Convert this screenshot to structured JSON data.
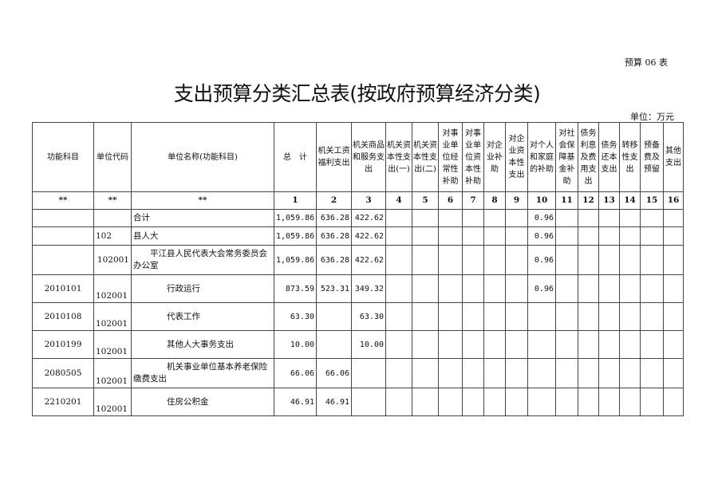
{
  "form_no": "预算 06 表",
  "title": "支出预算分类汇总表(按政府预算经济分类)",
  "unit": "单位：万元",
  "headers": [
    "功能科目",
    "单位代码",
    "单位名称(功能科目)",
    "总　计",
    "机关工资福利支出",
    "机关商品和服务支出",
    "机关资本性支出(一)",
    "机关资本性支出(二)",
    "对事业单位经常性补助",
    "对事业单位资本性补助",
    "对企业补助",
    "对企业资本性支出",
    "对个人和家庭的补助",
    "对社会保障基金补助",
    "债务利息及费用支出",
    "债务还本支出",
    "转移性支出",
    "预备费及预留",
    "其他支出"
  ],
  "serials": [
    "**",
    "**",
    "**",
    "1",
    "2",
    "3",
    "4",
    "5",
    "6",
    "7",
    "8",
    "9",
    "10",
    "11",
    "12",
    "13",
    "14",
    "15",
    "16"
  ],
  "rows": [
    {
      "func": "",
      "code": "",
      "name": "合计",
      "total": "1,059.86",
      "c2": "636.28",
      "c3": "422.62",
      "c10": "0.96"
    },
    {
      "func": "",
      "code": "102",
      "name": "县人大",
      "total": "1,059.86",
      "c2": "636.28",
      "c3": "422.62",
      "c10": "0.96"
    },
    {
      "func": "",
      "code": "102001",
      "name": "平江县人民代表大会常务委员会办公室",
      "total": "1,059.86",
      "c2": "636.28",
      "c3": "422.62",
      "c10": "0.96"
    },
    {
      "func": "2010101",
      "code": "102001",
      "name": "行政运行",
      "total": "873.59",
      "c2": "523.31",
      "c3": "349.32",
      "c10": "0.96"
    },
    {
      "func": "2010108",
      "code": "102001",
      "name": "代表工作",
      "total": "63.30",
      "c2": "",
      "c3": "63.30",
      "c10": ""
    },
    {
      "func": "2010199",
      "code": "102001",
      "name": "其他人大事务支出",
      "total": "10.00",
      "c2": "",
      "c3": "10.00",
      "c10": ""
    },
    {
      "func": "2080505",
      "code": "102001",
      "name": "机关事业单位基本养老保险缴费支出",
      "total": "66.06",
      "c2": "66.06",
      "c3": "",
      "c10": ""
    },
    {
      "func": "2210201",
      "code": "102001",
      "name": "住房公积金",
      "total": "46.91",
      "c2": "46.91",
      "c3": "",
      "c10": ""
    }
  ]
}
